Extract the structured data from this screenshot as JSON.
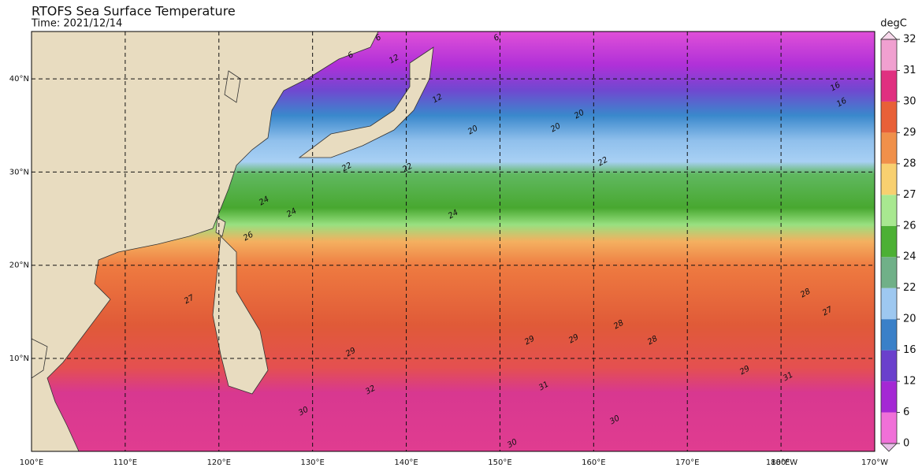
{
  "title": "RTOFS Sea Surface Temperature",
  "subtitle": "Time: 2021/12/14",
  "lon_labels": [
    "100°E",
    "110°E",
    "120°E",
    "130°E",
    "140°E",
    "150°E",
    "160°E",
    "170°E",
    "180°E",
    "180°W",
    "170°W"
  ],
  "lat_labels": [
    "10°N",
    "20°N",
    "30°N",
    "40°N"
  ],
  "colorbar": {
    "label": "degC",
    "ticks": [
      0,
      6,
      12,
      16,
      20,
      22,
      24,
      26,
      27,
      28,
      29,
      30,
      31,
      32
    ]
  },
  "contour_labels": [
    "6",
    "6",
    "6",
    "12",
    "12",
    "16",
    "16",
    "20",
    "20",
    "20",
    "22",
    "22",
    "22",
    "24",
    "24",
    "24",
    "26",
    "27",
    "27",
    "28",
    "28",
    "28",
    "29",
    "29",
    "29",
    "29",
    "30",
    "30",
    "30",
    "31",
    "31",
    "32"
  ]
}
